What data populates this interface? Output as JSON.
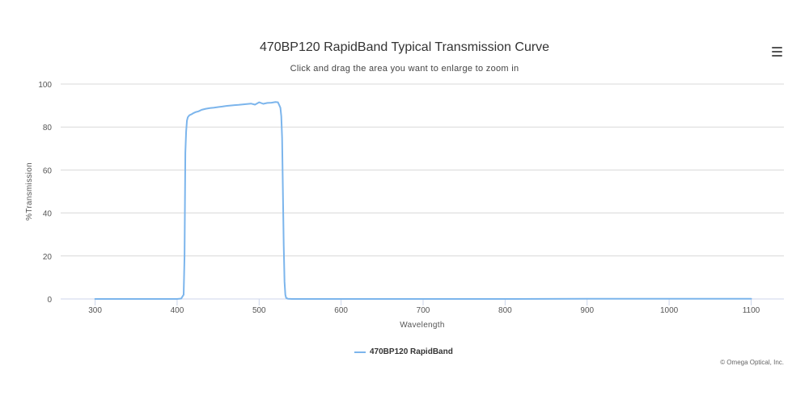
{
  "chart_data": {
    "type": "line",
    "title": "470BP120 RapidBand Typical Transmission Curve",
    "subtitle": "Click and drag the area you want to enlarge to zoom in",
    "xlabel": "Wavelength",
    "ylabel": "%Transmission",
    "xlim": [
      258,
      1140
    ],
    "ylim": [
      0,
      100
    ],
    "x_ticks": [
      300,
      400,
      500,
      600,
      700,
      800,
      900,
      1000,
      1100
    ],
    "y_ticks": [
      0,
      20,
      40,
      60,
      80,
      100
    ],
    "grid": "horizontal",
    "legend_position": "bottom-center",
    "series": [
      {
        "name": "470BP120 RapidBand",
        "color": "#7cb5ec",
        "x": [
          300,
          350,
          400,
          405,
          408,
          409,
          410,
          411,
          412,
          413,
          415,
          418,
          420,
          423,
          426,
          430,
          435,
          440,
          445,
          450,
          455,
          460,
          465,
          470,
          475,
          480,
          485,
          490,
          495,
          500,
          505,
          510,
          515,
          520,
          523,
          526,
          527,
          528,
          529,
          530,
          531,
          532,
          533,
          535,
          540,
          550,
          600,
          700,
          800,
          900,
          1000,
          1100
        ],
        "y": [
          0,
          0,
          0,
          0.2,
          2,
          20,
          68,
          78,
          83,
          84.5,
          85.5,
          86,
          86.5,
          87,
          87.3,
          88,
          88.5,
          88.8,
          89,
          89.3,
          89.5,
          89.8,
          90,
          90.2,
          90.3,
          90.5,
          90.7,
          90.9,
          90.4,
          91.5,
          90.8,
          91.2,
          91.3,
          91.6,
          91.5,
          89,
          85,
          75,
          50,
          25,
          8,
          2,
          0.5,
          0.1,
          0,
          0,
          0,
          0,
          0,
          0.1,
          0.1,
          0.1
        ]
      }
    ]
  },
  "ui": {
    "menu_icon": "hamburger-menu-icon",
    "credits": "© Omega Optical, Inc."
  }
}
